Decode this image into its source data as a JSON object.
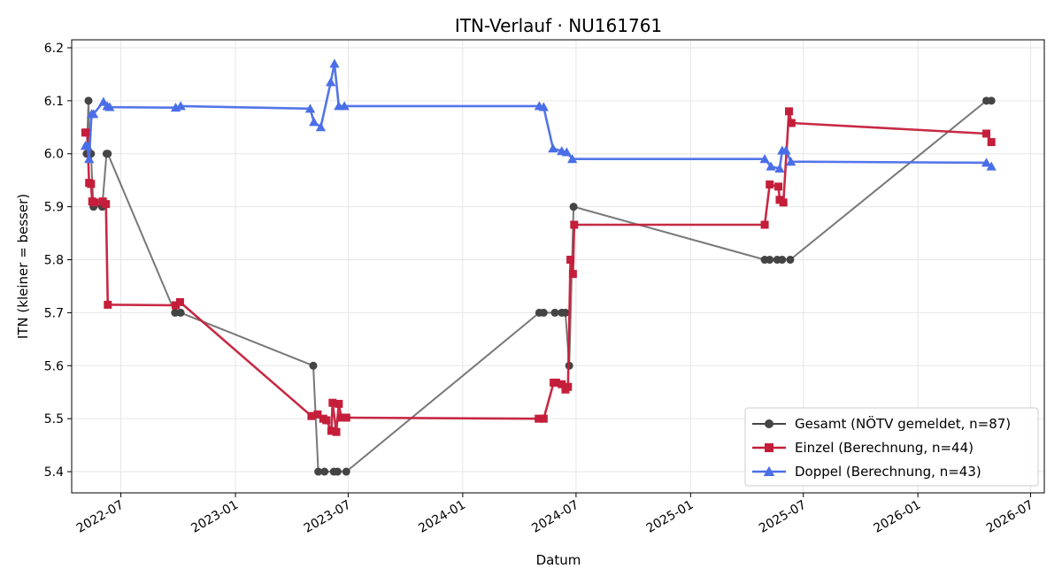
{
  "chart_data": {
    "type": "line",
    "title": "ITN-Verlauf · NU161761",
    "xlabel": "Datum",
    "ylabel": "ITN  (kleiner = besser)",
    "ylim": [
      5.36,
      6.215
    ],
    "xlim": [
      "2022-04-13",
      "2026-07-23"
    ],
    "yticks": [
      5.4,
      5.5,
      5.6,
      5.7,
      5.8,
      5.9,
      6.0,
      6.1,
      6.2
    ],
    "ytick_labels": [
      "5.4",
      "5.5",
      "5.6",
      "5.7",
      "5.8",
      "5.9",
      "6.0",
      "6.1",
      "6.2"
    ],
    "xticks": [
      "2022-07-01",
      "2023-01-01",
      "2023-07-01",
      "2024-01-01",
      "2024-07-01",
      "2025-01-01",
      "2025-07-01",
      "2026-01-01",
      "2026-07-01"
    ],
    "xtick_labels": [
      "2022-07",
      "2023-01",
      "2023-07",
      "2024-01",
      "2024-07",
      "2025-01",
      "2025-07",
      "2026-01",
      "2026-07"
    ],
    "grid": true,
    "legend_position": "lower-right",
    "series": [
      {
        "name": "Gesamt (NÖTV gemeldet, n=87)",
        "color": "#444444",
        "marker": "circle",
        "points": [
          [
            "2022-05-07",
            6.0
          ],
          [
            "2022-05-10",
            6.1
          ],
          [
            "2022-05-12",
            6.0
          ],
          [
            "2022-05-14",
            6.0
          ],
          [
            "2022-05-18",
            5.9
          ],
          [
            "2022-06-01",
            5.9
          ],
          [
            "2022-06-08",
            6.0
          ],
          [
            "2022-06-10",
            6.0
          ],
          [
            "2022-09-26",
            5.7
          ],
          [
            "2022-10-05",
            5.7
          ],
          [
            "2023-05-06",
            5.6
          ],
          [
            "2023-05-14",
            5.4
          ],
          [
            "2023-05-24",
            5.4
          ],
          [
            "2023-06-08",
            5.4
          ],
          [
            "2023-06-14",
            5.4
          ],
          [
            "2023-06-28",
            5.4
          ],
          [
            "2024-05-03",
            5.7
          ],
          [
            "2024-05-10",
            5.7
          ],
          [
            "2024-05-28",
            5.7
          ],
          [
            "2024-06-08",
            5.7
          ],
          [
            "2024-06-14",
            5.7
          ],
          [
            "2024-06-20",
            5.6
          ],
          [
            "2024-06-27",
            5.9
          ],
          [
            "2025-04-30",
            5.8
          ],
          [
            "2025-05-08",
            5.8
          ],
          [
            "2025-05-20",
            5.8
          ],
          [
            "2025-05-28",
            5.8
          ],
          [
            "2025-06-10",
            5.8
          ],
          [
            "2026-04-21",
            6.1
          ],
          [
            "2026-04-29",
            6.1
          ]
        ]
      },
      {
        "name": "Einzel (Berechnung, n=44)",
        "color": "#c41e3a",
        "marker": "square",
        "points": [
          [
            "2022-05-05",
            6.04
          ],
          [
            "2022-05-08",
            6.04
          ],
          [
            "2022-05-11",
            5.945
          ],
          [
            "2022-05-14",
            5.943
          ],
          [
            "2022-05-16",
            5.91
          ],
          [
            "2022-05-20",
            5.908
          ],
          [
            "2022-06-02",
            5.91
          ],
          [
            "2022-06-07",
            5.905
          ],
          [
            "2022-06-10",
            5.715
          ],
          [
            "2022-09-27",
            5.714
          ],
          [
            "2022-10-04",
            5.72
          ],
          [
            "2023-05-03",
            5.505
          ],
          [
            "2023-05-13",
            5.508
          ],
          [
            "2023-05-22",
            5.5
          ],
          [
            "2023-05-27",
            5.497
          ],
          [
            "2023-06-04",
            5.477
          ],
          [
            "2023-06-06",
            5.53
          ],
          [
            "2023-06-12",
            5.475
          ],
          [
            "2023-06-16",
            5.528
          ],
          [
            "2023-06-20",
            5.502
          ],
          [
            "2023-06-28",
            5.502
          ],
          [
            "2024-05-02",
            5.5
          ],
          [
            "2024-05-10",
            5.5
          ],
          [
            "2024-05-26",
            5.568
          ],
          [
            "2024-05-30",
            5.568
          ],
          [
            "2024-06-08",
            5.565
          ],
          [
            "2024-06-14",
            5.555
          ],
          [
            "2024-06-18",
            5.56
          ],
          [
            "2024-06-22",
            5.8
          ],
          [
            "2024-06-26",
            5.773
          ],
          [
            "2024-06-28",
            5.866
          ],
          [
            "2025-04-30",
            5.866
          ],
          [
            "2025-05-08",
            5.942
          ],
          [
            "2025-05-22",
            5.938
          ],
          [
            "2025-05-24",
            5.913
          ],
          [
            "2025-05-30",
            5.908
          ],
          [
            "2025-06-08",
            6.08
          ],
          [
            "2025-06-12",
            6.058
          ],
          [
            "2026-04-21",
            6.038
          ],
          [
            "2026-04-29",
            6.022
          ]
        ]
      },
      {
        "name": "Doppel (Berechnung, n=43)",
        "color": "#4a6ee8",
        "marker": "triangle",
        "points": [
          [
            "2022-05-05",
            6.015
          ],
          [
            "2022-05-08",
            6.015
          ],
          [
            "2022-05-11",
            5.99
          ],
          [
            "2022-05-15",
            6.075
          ],
          [
            "2022-05-18",
            6.075
          ],
          [
            "2022-06-03",
            6.098
          ],
          [
            "2022-06-09",
            6.09
          ],
          [
            "2022-06-13",
            6.088
          ],
          [
            "2022-09-27",
            6.087
          ],
          [
            "2022-10-05",
            6.09
          ],
          [
            "2023-05-01",
            6.085
          ],
          [
            "2023-05-07",
            6.06
          ],
          [
            "2023-05-18",
            6.05
          ],
          [
            "2023-06-03",
            6.135
          ],
          [
            "2023-06-09",
            6.17
          ],
          [
            "2023-06-16",
            6.09
          ],
          [
            "2023-06-25",
            6.09
          ],
          [
            "2024-05-03",
            6.09
          ],
          [
            "2024-05-10",
            6.088
          ],
          [
            "2024-05-25",
            6.01
          ],
          [
            "2024-06-08",
            6.005
          ],
          [
            "2024-06-16",
            6.003
          ],
          [
            "2024-06-25",
            5.99
          ],
          [
            "2025-04-30",
            5.99
          ],
          [
            "2025-05-10",
            5.976
          ],
          [
            "2025-05-24",
            5.972
          ],
          [
            "2025-05-28",
            6.006
          ],
          [
            "2025-06-03",
            6.006
          ],
          [
            "2025-06-11",
            5.985
          ],
          [
            "2026-04-21",
            5.983
          ],
          [
            "2026-04-29",
            5.976
          ]
        ]
      }
    ]
  }
}
